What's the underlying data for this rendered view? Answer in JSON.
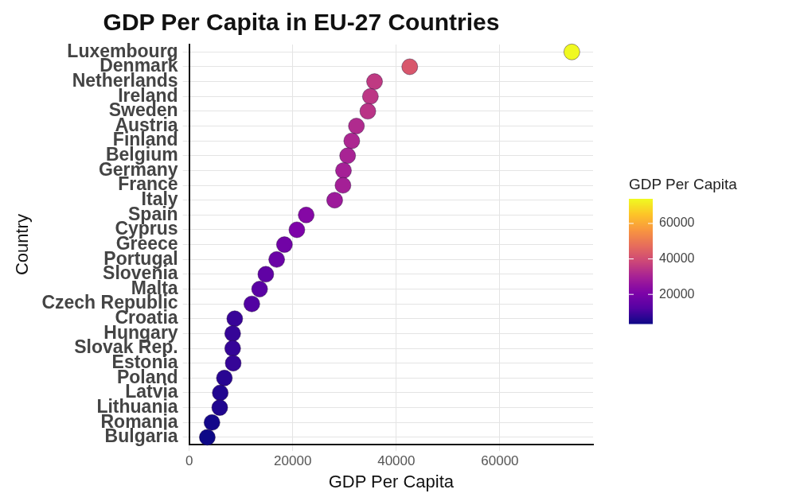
{
  "chart_data": {
    "type": "scatter",
    "title": "GDP Per Capita in EU-27 Countries",
    "xlabel": "GDP Per Capita",
    "ylabel": "Country",
    "clabel": "GDP Per Capita",
    "categories": [
      "Luxembourg",
      "Denmark",
      "Netherlands",
      "Ireland",
      "Sweden",
      "Austria",
      "Finland",
      "Belgium",
      "Germany",
      "France",
      "Italy",
      "Spain",
      "Cyprus",
      "Greece",
      "Portugal",
      "Slovenia",
      "Malta",
      "Czech Republic",
      "Croatia",
      "Hungary",
      "Slovak Rep.",
      "Estonia",
      "Poland",
      "Latvia",
      "Lithuania",
      "Romania",
      "Bulgaria"
    ],
    "values": [
      73900,
      42600,
      35800,
      35000,
      34500,
      32300,
      31400,
      30600,
      29800,
      29700,
      28100,
      22600,
      20800,
      18400,
      16900,
      14800,
      13600,
      12100,
      8800,
      8400,
      8400,
      8500,
      6800,
      6000,
      5900,
      4400,
      3500
    ],
    "cvalues": [
      73900,
      42600,
      35800,
      35000,
      34500,
      32300,
      31400,
      30600,
      29800,
      29700,
      28100,
      22600,
      20800,
      18400,
      16900,
      14800,
      13600,
      12100,
      8800,
      8400,
      8400,
      8500,
      6800,
      6000,
      5900,
      4400,
      3500
    ],
    "clim": [
      3500,
      73900
    ],
    "cticks": [
      20000,
      40000,
      60000
    ],
    "xlim": [
      0,
      78000
    ],
    "xticks": [
      0,
      20000,
      40000,
      60000
    ],
    "orientation": "horizontal",
    "grid": true,
    "marker": "circle"
  }
}
